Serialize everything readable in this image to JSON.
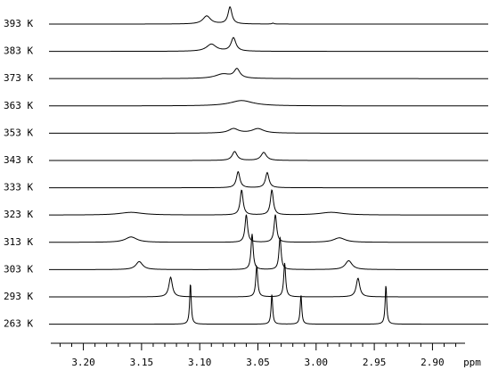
{
  "chart_data": {
    "type": "spectra",
    "x_label": "ppm",
    "xlim": [
      3.228,
      2.872
    ],
    "xticks": [
      {
        "value": 3.2,
        "label": "3.20"
      },
      {
        "value": 3.15,
        "label": "3.15"
      },
      {
        "value": 3.1,
        "label": "3.10"
      },
      {
        "value": 3.05,
        "label": "3.05"
      },
      {
        "value": 3.0,
        "label": "3.00"
      },
      {
        "value": 2.95,
        "label": "2.95"
      },
      {
        "value": 2.9,
        "label": "2.90"
      }
    ],
    "xticks_minor": [
      3.22,
      3.21,
      3.19,
      3.18,
      3.17,
      3.16,
      3.14,
      3.13,
      3.12,
      3.11,
      3.09,
      3.08,
      3.07,
      3.06,
      3.04,
      3.03,
      3.02,
      3.01,
      2.99,
      2.98,
      2.97,
      2.96,
      2.94,
      2.93,
      2.92,
      2.91,
      2.89,
      2.88
    ],
    "color": "#000000",
    "series": [
      {
        "name": "393 K",
        "peaks": [
          3.094,
          3.074,
          3.037
        ],
        "heights": [
          9,
          19,
          1
        ],
        "widths": [
          0.004,
          0.002,
          0.001
        ]
      },
      {
        "name": "383 K",
        "peaks": [
          3.09,
          3.071
        ],
        "heights": [
          8,
          15
        ],
        "widths": [
          0.005,
          0.0025
        ]
      },
      {
        "name": "373 K",
        "peaks": [
          3.08,
          3.068
        ],
        "heights": [
          5,
          10
        ],
        "widths": [
          0.008,
          0.003
        ]
      },
      {
        "name": "363 K",
        "peaks": [
          3.064
        ],
        "heights": [
          6
        ],
        "widths": [
          0.012
        ]
      },
      {
        "name": "353 K",
        "peaks": [
          3.071,
          3.05
        ],
        "heights": [
          5,
          5
        ],
        "widths": [
          0.005,
          0.006
        ]
      },
      {
        "name": "343 K",
        "peaks": [
          3.07,
          3.045
        ],
        "heights": [
          10,
          9
        ],
        "widths": [
          0.0025,
          0.0028
        ]
      },
      {
        "name": "333 K",
        "peaks": [
          3.067,
          3.042
        ],
        "heights": [
          18,
          17
        ],
        "widths": [
          0.0018,
          0.0018
        ]
      },
      {
        "name": "323 K",
        "peaks": [
          3.159,
          3.064,
          3.038,
          2.987
        ],
        "heights": [
          3,
          28,
          28,
          3
        ],
        "widths": [
          0.012,
          0.0015,
          0.0015,
          0.012
        ]
      },
      {
        "name": "313 K",
        "peaks": [
          3.159,
          3.06,
          3.035,
          2.98
        ],
        "heights": [
          6,
          31,
          31,
          5
        ],
        "widths": [
          0.006,
          0.0013,
          0.0013,
          0.006
        ]
      },
      {
        "name": "303 K",
        "peaks": [
          3.152,
          3.055,
          3.031,
          2.972
        ],
        "heights": [
          9,
          40,
          36,
          10
        ],
        "widths": [
          0.0035,
          0.0011,
          0.0011,
          0.0035
        ]
      },
      {
        "name": "293 K",
        "peaks": [
          3.125,
          3.051,
          3.027,
          2.964
        ],
        "heights": [
          22,
          35,
          38,
          21
        ],
        "widths": [
          0.0018,
          0.001,
          0.001,
          0.0018
        ]
      },
      {
        "name": "263 K",
        "peaks": [
          3.108,
          3.038,
          3.013,
          2.94
        ],
        "heights": [
          46,
          34,
          33,
          44
        ],
        "widths": [
          0.0008,
          0.0008,
          0.0008,
          0.0008
        ]
      }
    ]
  }
}
